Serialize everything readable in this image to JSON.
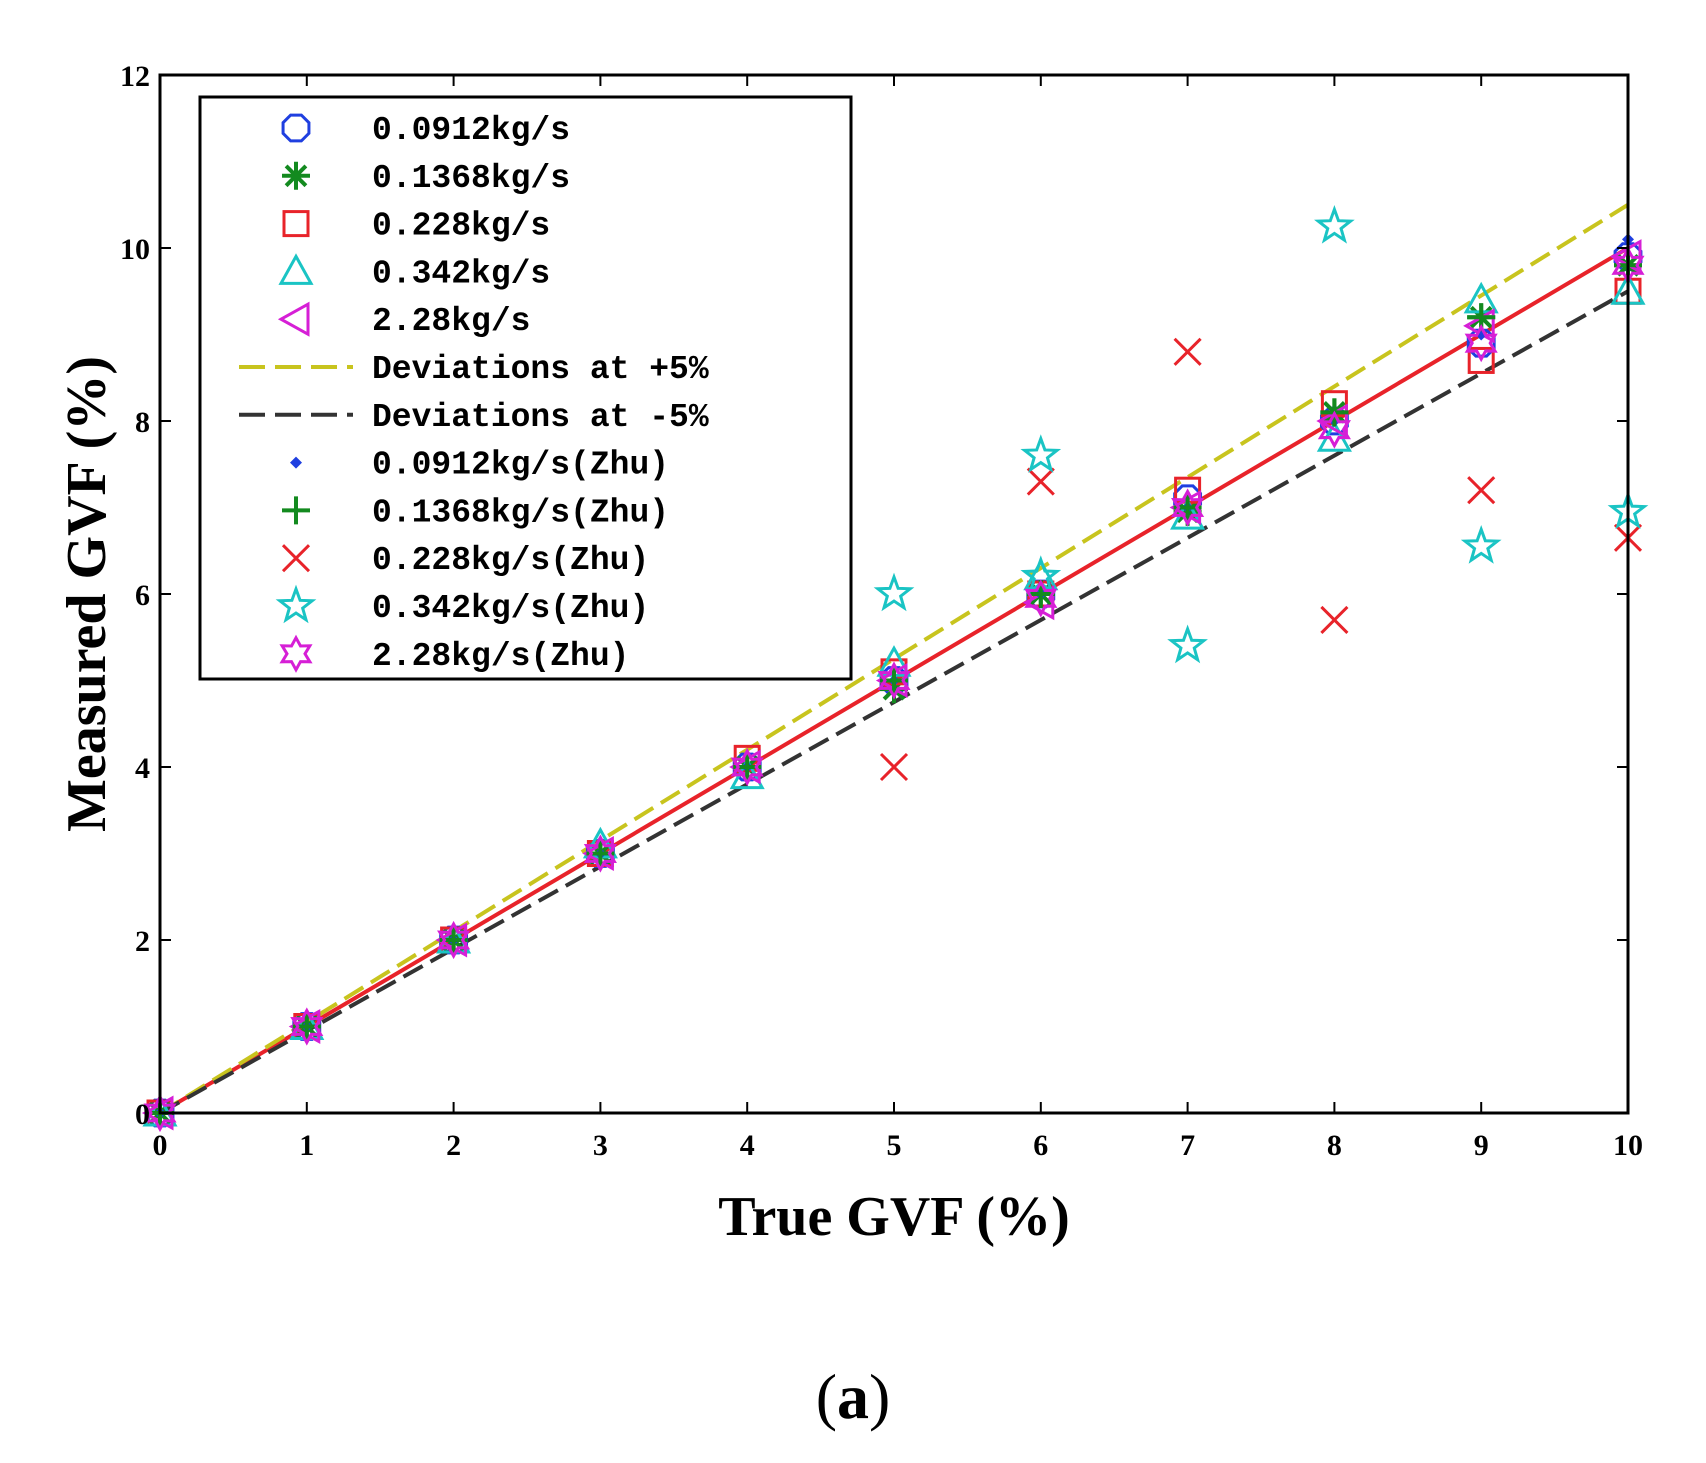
{
  "chart_data": {
    "type": "scatter",
    "title": "",
    "xlabel": "True GVF (%)",
    "ylabel": "Measured GVF (%)",
    "xlim": [
      0,
      10
    ],
    "ylim": [
      0,
      12
    ],
    "xticks": [
      "0",
      "1",
      "2",
      "3",
      "4",
      "5",
      "6",
      "7",
      "8",
      "9",
      "10"
    ],
    "yticks": [
      "0",
      "2",
      "4",
      "6",
      "8",
      "10",
      "12"
    ],
    "grid": false,
    "legend_position": "top-left",
    "caption": {
      "open": "(",
      "letter": "a",
      "close": ")"
    },
    "lines": [
      {
        "name": "",
        "color": "#e8232a",
        "style": "solid",
        "x": [
          0,
          10
        ],
        "y": [
          0,
          10
        ]
      },
      {
        "name": "Deviations at +5%",
        "color": "#c8c41e",
        "style": "dashed",
        "x": [
          0,
          10
        ],
        "y": [
          0,
          10.5
        ]
      },
      {
        "name": "Deviations at -5%",
        "color": "#333333",
        "style": "dashed",
        "x": [
          0,
          10
        ],
        "y": [
          0,
          9.5
        ]
      }
    ],
    "series": [
      {
        "name": "0.0912kg/s",
        "marker": "circle",
        "color": "#1f3fe0",
        "x": [
          0,
          1,
          2,
          3,
          4,
          5,
          6,
          7,
          8,
          9,
          10
        ],
        "y": [
          0,
          1.0,
          2.0,
          3.0,
          4.0,
          5.0,
          6.0,
          7.1,
          8.0,
          8.9,
          9.9
        ]
      },
      {
        "name": "0.1368kg/s",
        "marker": "asterisk",
        "color": "#138a1f",
        "x": [
          0,
          1,
          2,
          3,
          4,
          5,
          6,
          7,
          8,
          9,
          10
        ],
        "y": [
          0,
          1.0,
          2.0,
          3.0,
          4.0,
          4.9,
          6.0,
          6.95,
          8.1,
          9.2,
          9.8
        ]
      },
      {
        "name": "0.228kg/s",
        "marker": "square",
        "color": "#e8232a",
        "x": [
          0,
          1,
          2,
          3,
          4,
          5,
          6,
          7,
          8,
          9,
          10
        ],
        "y": [
          0,
          1.0,
          2.0,
          3.0,
          4.1,
          5.1,
          6.0,
          7.2,
          8.2,
          8.7,
          9.5
        ]
      },
      {
        "name": "0.342kg/s",
        "marker": "triangle-up",
        "color": "#1ac4c4",
        "x": [
          0,
          1,
          2,
          3,
          4,
          5,
          6,
          7,
          8,
          9,
          10
        ],
        "y": [
          0,
          1.0,
          2.0,
          3.1,
          3.9,
          5.2,
          6.2,
          6.9,
          7.8,
          9.4,
          9.5
        ]
      },
      {
        "name": "2.28kg/s",
        "marker": "triangle-left",
        "color": "#d61fd6",
        "x": [
          0,
          1,
          2,
          3,
          4,
          5,
          6,
          7,
          8,
          9,
          10
        ],
        "y": [
          0,
          1.0,
          2.0,
          3.0,
          4.0,
          5.0,
          5.9,
          7.0,
          8.0,
          9.1,
          9.9
        ]
      },
      {
        "name": "Deviations at +5%",
        "marker": "line-dashed",
        "color": "#c8c41e",
        "x": [],
        "y": []
      },
      {
        "name": "Deviations at -5%",
        "marker": "line-dashed",
        "color": "#333333",
        "x": [],
        "y": []
      },
      {
        "name": "0.0912kg/s(Zhu)",
        "marker": "dot",
        "color": "#1f3fe0",
        "x": [
          0,
          1,
          2,
          3,
          4,
          5,
          6,
          7,
          8,
          9,
          10
        ],
        "y": [
          0,
          1.0,
          2.0,
          3.0,
          4.0,
          5.0,
          6.0,
          7.0,
          8.0,
          9.0,
          10.1
        ]
      },
      {
        "name": "0.1368kg/s(Zhu)",
        "marker": "plus",
        "color": "#138a1f",
        "x": [
          0,
          1,
          2,
          3,
          4,
          5,
          6,
          7,
          8,
          9,
          10
        ],
        "y": [
          0,
          1.0,
          2.0,
          3.0,
          4.0,
          5.0,
          6.0,
          7.0,
          8.1,
          9.2,
          9.8
        ]
      },
      {
        "name": "0.228kg/s(Zhu)",
        "marker": "x",
        "color": "#e8232a",
        "x": [
          5,
          6,
          7,
          8,
          9,
          10
        ],
        "y": [
          4.0,
          7.3,
          8.8,
          5.7,
          7.2,
          6.65
        ]
      },
      {
        "name": "0.342kg/s(Zhu)",
        "marker": "star5",
        "color": "#1ac4c4",
        "x": [
          5,
          6,
          6,
          7,
          8,
          9,
          10
        ],
        "y": [
          6.0,
          7.6,
          6.2,
          5.4,
          10.25,
          6.55,
          6.95
        ]
      },
      {
        "name": "2.28kg/s(Zhu)",
        "marker": "star6",
        "color": "#d61fd6",
        "x": [
          0,
          1,
          2,
          3,
          4,
          5,
          6,
          7,
          8,
          9,
          10
        ],
        "y": [
          0,
          1.0,
          2.0,
          3.0,
          4.0,
          5.0,
          5.95,
          7.0,
          7.9,
          8.9,
          9.8
        ]
      }
    ]
  }
}
